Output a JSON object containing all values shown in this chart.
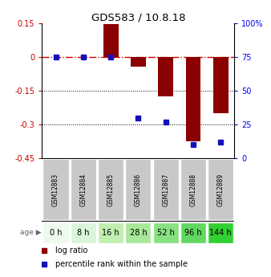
{
  "title": "GDS583 / 10.8.18",
  "samples": [
    "GSM12883",
    "GSM12884",
    "GSM12885",
    "GSM12886",
    "GSM12887",
    "GSM12888",
    "GSM12889"
  ],
  "ages": [
    "0 h",
    "8 h",
    "16 h",
    "28 h",
    "52 h",
    "96 h",
    "144 h"
  ],
  "log_ratio": [
    0.0,
    0.0,
    0.148,
    -0.042,
    -0.175,
    -0.375,
    -0.25
  ],
  "percentile": [
    75,
    75,
    75,
    30,
    27,
    10,
    12
  ],
  "bar_color": "#8B0000",
  "dot_color": "#1111bb",
  "ylim_left": [
    -0.45,
    0.15
  ],
  "ylim_right": [
    0,
    100
  ],
  "yticks_left": [
    0.15,
    0.0,
    -0.15,
    -0.3,
    -0.45
  ],
  "yticks_right": [
    100,
    75,
    50,
    25,
    0
  ],
  "ytick_labels_left": [
    "0.15",
    "0",
    "-0.15",
    "-0.3",
    "-0.45"
  ],
  "ytick_labels_right": [
    "100%",
    "75",
    "50",
    "25",
    "0"
  ],
  "hlines_dotted": [
    -0.15,
    -0.3
  ],
  "hline_dashed": 0.0,
  "age_bg_colors": [
    "#eefaee",
    "#d8f5d8",
    "#c0efb0",
    "#a8e898",
    "#88e080",
    "#60d860",
    "#30d030"
  ],
  "sample_bg_color": "#c8c8c8",
  "bar_width": 0.55,
  "legend_red_label": "log ratio",
  "legend_blue_label": "percentile rank within the sample"
}
